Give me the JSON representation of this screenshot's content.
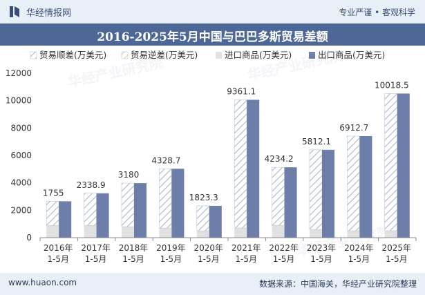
{
  "header": {
    "brand": "华经情报网",
    "slogan": "专业严谨 • 客观科学"
  },
  "title": "2016-2025年5月中国与巴巴多斯贸易差额",
  "footer": {
    "url": "www.huaon.com",
    "source": "数据来源：中国海关，华经产业研究院整理"
  },
  "watermark": "华经产业研究院",
  "colors": {
    "import": "#e1e1e1",
    "export": "#6d7fa8",
    "surplus_hatch": "#a9b8cc",
    "header_band": "#4d6796"
  },
  "chart_data": {
    "type": "bar",
    "categories": [
      [
        "2016年",
        "1-5月"
      ],
      [
        "2017年",
        "1-5月"
      ],
      [
        "2018年",
        "1-5月"
      ],
      [
        "2019年",
        "1-5月"
      ],
      [
        "2020年",
        "1-5月"
      ],
      [
        "2021年",
        "1-5月"
      ],
      [
        "2022年",
        "1-5月"
      ],
      [
        "2023年",
        "1-5月"
      ],
      [
        "2024年",
        "1-5月"
      ],
      [
        "2025年",
        "1-5月"
      ]
    ],
    "series": [
      {
        "name": "贸易顺差(万美元)",
        "values": [
          1755,
          2338.9,
          3180,
          4328.7,
          1823.3,
          9361.1,
          4234.2,
          5812.1,
          6912.7,
          10018.5
        ]
      },
      {
        "name": "贸易逆差(万美元)",
        "values": [
          0,
          0,
          0,
          0,
          0,
          0,
          0,
          0,
          0,
          0
        ]
      },
      {
        "name": "进口商品(万美元)",
        "values": [
          900,
          900,
          800,
          700,
          500,
          700,
          900,
          600,
          500,
          500
        ]
      },
      {
        "name": "出口商品(万美元)",
        "values": [
          2655,
          3239,
          3980,
          5029,
          2323,
          10061,
          5134,
          6412,
          7413,
          10519
        ]
      }
    ],
    "data_labels": [
      "1755",
      "2338.9",
      "3180",
      "4328.7",
      "1823.3",
      "9361.1",
      "4234.2",
      "5812.1",
      "6912.7",
      "10018.5"
    ],
    "ylim": [
      0,
      12000
    ],
    "yticks": [
      0,
      2000,
      4000,
      6000,
      8000,
      10000,
      12000
    ],
    "legend": "top",
    "grid": false
  }
}
